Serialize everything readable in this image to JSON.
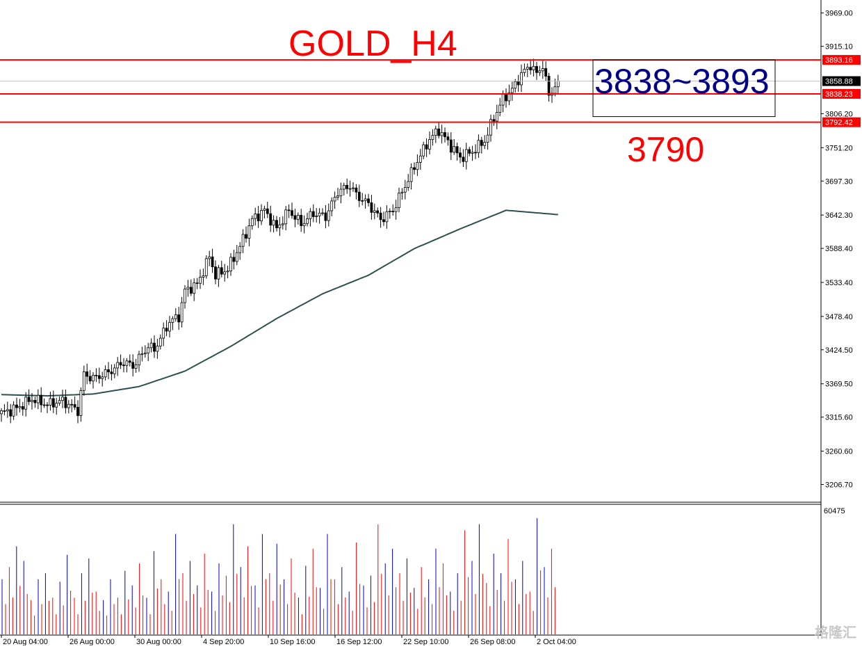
{
  "chart_data": [
    {
      "type": "candlestick",
      "title": "GOLD_H4",
      "current_price": "3858.88",
      "y_ticks": [
        "3969.00",
        "3915.10",
        "3806.20",
        "3751.20",
        "3697.30",
        "3642.30",
        "3588.40",
        "3533.40",
        "3478.40",
        "3424.50",
        "3369.50",
        "3315.60",
        "3260.60",
        "3206.70"
      ],
      "ylim": [
        3178,
        3990
      ],
      "x_ticks": [
        "20 Aug 04:00",
        "26 Aug 00:00",
        "30 Aug 00:00",
        "4 Sep 20:00",
        "10 Sep 16:00",
        "16 Sep 12:00",
        "22 Sep 10:00",
        "26 Sep 08:00",
        "2 Oct 04:00"
      ],
      "levels": [
        {
          "label": "3893.16",
          "value": 3893.16
        },
        {
          "label": "3838.23",
          "value": 3838.23
        },
        {
          "label": "3792.42",
          "value": 3792.42
        }
      ],
      "annotations": {
        "range_box": "3838~3893",
        "support": "3790"
      },
      "close_path": [
        [
          0,
          3322
        ],
        [
          5,
          3330
        ],
        [
          10,
          3345
        ],
        [
          15,
          3336
        ],
        [
          20,
          3342
        ],
        [
          25,
          3326
        ],
        [
          27,
          3385
        ],
        [
          30,
          3378
        ],
        [
          35,
          3388
        ],
        [
          40,
          3405
        ],
        [
          43,
          3398
        ],
        [
          48,
          3430
        ],
        [
          50,
          3425
        ],
        [
          55,
          3470
        ],
        [
          58,
          3478
        ],
        [
          60,
          3520
        ],
        [
          64,
          3530
        ],
        [
          68,
          3575
        ],
        [
          70,
          3545
        ],
        [
          74,
          3555
        ],
        [
          78,
          3592
        ],
        [
          82,
          3635
        ],
        [
          86,
          3650
        ],
        [
          90,
          3620
        ],
        [
          94,
          3650
        ],
        [
          98,
          3628
        ],
        [
          102,
          3645
        ],
        [
          106,
          3640
        ],
        [
          110,
          3680
        ],
        [
          114,
          3690
        ],
        [
          116,
          3675
        ],
        [
          120,
          3660
        ],
        [
          124,
          3635
        ],
        [
          128,
          3650
        ],
        [
          132,
          3690
        ],
        [
          136,
          3730
        ],
        [
          140,
          3765
        ],
        [
          143,
          3780
        ],
        [
          146,
          3760
        ],
        [
          150,
          3735
        ],
        [
          154,
          3745
        ],
        [
          158,
          3762
        ],
        [
          161,
          3800
        ],
        [
          164,
          3830
        ],
        [
          167,
          3845
        ],
        [
          170,
          3870
        ],
        [
          173,
          3885
        ],
        [
          175,
          3870
        ],
        [
          177,
          3885
        ],
        [
          179,
          3835
        ],
        [
          181,
          3852
        ],
        [
          182,
          3858.88
        ]
      ],
      "ma_path": [
        [
          0,
          3352
        ],
        [
          15,
          3350
        ],
        [
          30,
          3353
        ],
        [
          45,
          3365
        ],
        [
          60,
          3390
        ],
        [
          75,
          3430
        ],
        [
          90,
          3475
        ],
        [
          105,
          3515
        ],
        [
          120,
          3545
        ],
        [
          135,
          3588
        ],
        [
          150,
          3620
        ],
        [
          165,
          3650
        ],
        [
          182,
          3643
        ]
      ],
      "volume_max": "60475",
      "volume_bars": [
        0.45,
        0.55,
        0.72,
        0.6,
        0.28,
        0.45,
        0.5,
        0.3,
        0.43,
        0.65,
        0.3,
        0.5,
        0.62,
        0.35,
        0.28,
        0.45,
        0.3,
        0.52,
        0.4,
        0.58,
        0.3,
        0.68,
        0.45,
        0.35,
        0.82,
        0.5,
        0.6,
        0.4,
        0.66,
        0.35,
        0.58,
        0.48,
        0.9,
        0.55,
        0.72,
        0.4,
        0.82,
        0.5,
        0.74,
        0.45,
        0.62,
        0.3,
        0.56,
        0.7,
        0.38,
        0.82,
        0.45,
        0.55,
        0.35,
        0.75,
        0.4,
        0.48,
        0.9,
        0.58,
        0.7,
        0.5,
        0.62,
        0.38,
        0.55,
        0.45,
        0.7,
        0.58,
        0.35,
        0.5,
        0.85,
        0.6,
        0.9,
        0.42,
        0.66,
        0.5,
        0.78,
        0.45,
        0.6,
        0.35,
        0.95,
        0.55,
        0.7
      ]
    }
  ],
  "watermark": "格隆汇"
}
